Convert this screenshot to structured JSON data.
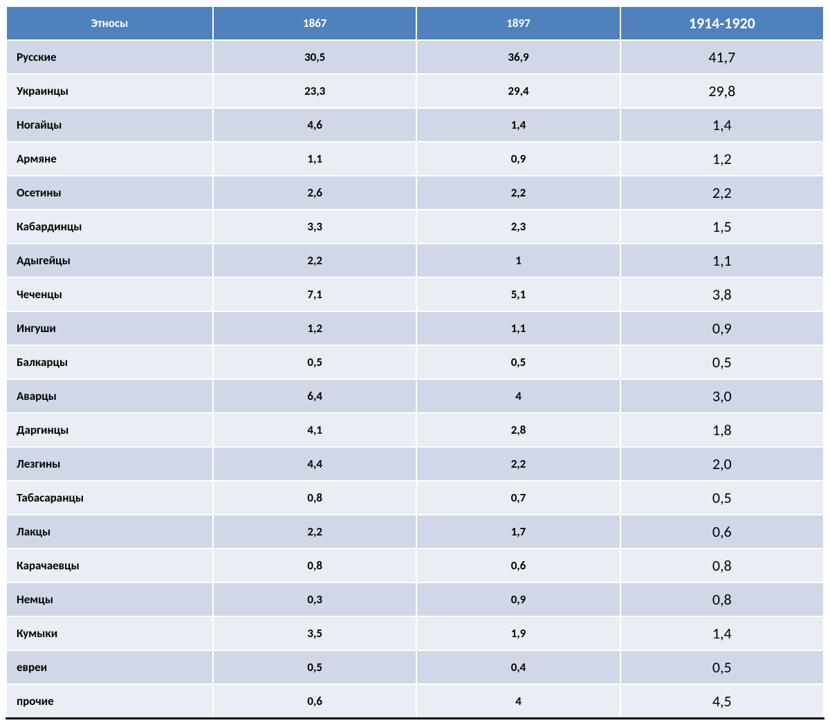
{
  "colors": {
    "header_bg": "#4f81bd",
    "header_text": "#ffffff",
    "row_odd_bg": "#d0d8e8",
    "row_even_bg": "#e9edf4",
    "border": "#ffffff",
    "text": "#000000"
  },
  "fonts": {
    "header_size_pt": 13,
    "header_last_size_pt": 17,
    "cell_size_pt": 13,
    "last_col_size_pt": 17,
    "family": "Calibri"
  },
  "columns": [
    {
      "key": "ethnos",
      "label": "Этносы",
      "width_pct": 25.3,
      "align": "left"
    },
    {
      "key": "y1867",
      "label": "1867",
      "width_pct": 24.9,
      "align": "center"
    },
    {
      "key": "y1897",
      "label": "1897",
      "width_pct": 24.9,
      "align": "center"
    },
    {
      "key": "y1914_1920",
      "label": "1914-1920",
      "width_pct": 24.9,
      "align": "center"
    }
  ],
  "rows": [
    {
      "ethnos": "Русские",
      "y1867": "30,5",
      "y1897": "36,9",
      "y1914_1920": "41,7"
    },
    {
      "ethnos": "Украинцы",
      "y1867": "23,3",
      "y1897": "29,4",
      "y1914_1920": "29,8"
    },
    {
      "ethnos": "Ногайцы",
      "y1867": "4,6",
      "y1897": "1,4",
      "y1914_1920": "1,4"
    },
    {
      "ethnos": "Армяне",
      "y1867": "1,1",
      "y1897": "0,9",
      "y1914_1920": "1,2"
    },
    {
      "ethnos": "Осетины",
      "y1867": "2,6",
      "y1897": "2,2",
      "y1914_1920": "2,2"
    },
    {
      "ethnos": "Кабардинцы",
      "y1867": "3,3",
      "y1897": "2,3",
      "y1914_1920": "1,5"
    },
    {
      "ethnos": "Адыгейцы",
      "y1867": "2,2",
      "y1897": "1",
      "y1914_1920": "1,1"
    },
    {
      "ethnos": "Чеченцы",
      "y1867": "7,1",
      "y1897": "5,1",
      "y1914_1920": "3,8"
    },
    {
      "ethnos": "Ингуши",
      "y1867": "1,2",
      "y1897": "1,1",
      "y1914_1920": "0,9"
    },
    {
      "ethnos": "Балкарцы",
      "y1867": "0,5",
      "y1897": "0,5",
      "y1914_1920": "0,5"
    },
    {
      "ethnos": "Аварцы",
      "y1867": "6,4",
      "y1897": "4",
      "y1914_1920": "3,0"
    },
    {
      "ethnos": "Даргинцы",
      "y1867": "4,1",
      "y1897": "2,8",
      "y1914_1920": "1,8"
    },
    {
      "ethnos": "Лезгины",
      "y1867": "4,4",
      "y1897": "2,2",
      "y1914_1920": "2,0"
    },
    {
      "ethnos": "Табасаранцы",
      "y1867": "0,8",
      "y1897": "0,7",
      "y1914_1920": "0,5"
    },
    {
      "ethnos": "Лакцы",
      "y1867": "2,2",
      "y1897": "1,7",
      "y1914_1920": "0,6"
    },
    {
      "ethnos": "Карачаевцы",
      "y1867": "0,8",
      "y1897": "0,6",
      "y1914_1920": "0,8"
    },
    {
      "ethnos": "Немцы",
      "y1867": "0,3",
      "y1897": "0,9",
      "y1914_1920": "0,8"
    },
    {
      "ethnos": "Кумыки",
      "y1867": "3,5",
      "y1897": "1,9",
      "y1914_1920": "1,4"
    },
    {
      "ethnos": "евреи",
      "y1867": "0,5",
      "y1897": "0,4",
      "y1914_1920": "0,5"
    },
    {
      "ethnos": "прочие",
      "y1867": "0,6",
      "y1897": "4",
      "y1914_1920": "4,5"
    }
  ]
}
